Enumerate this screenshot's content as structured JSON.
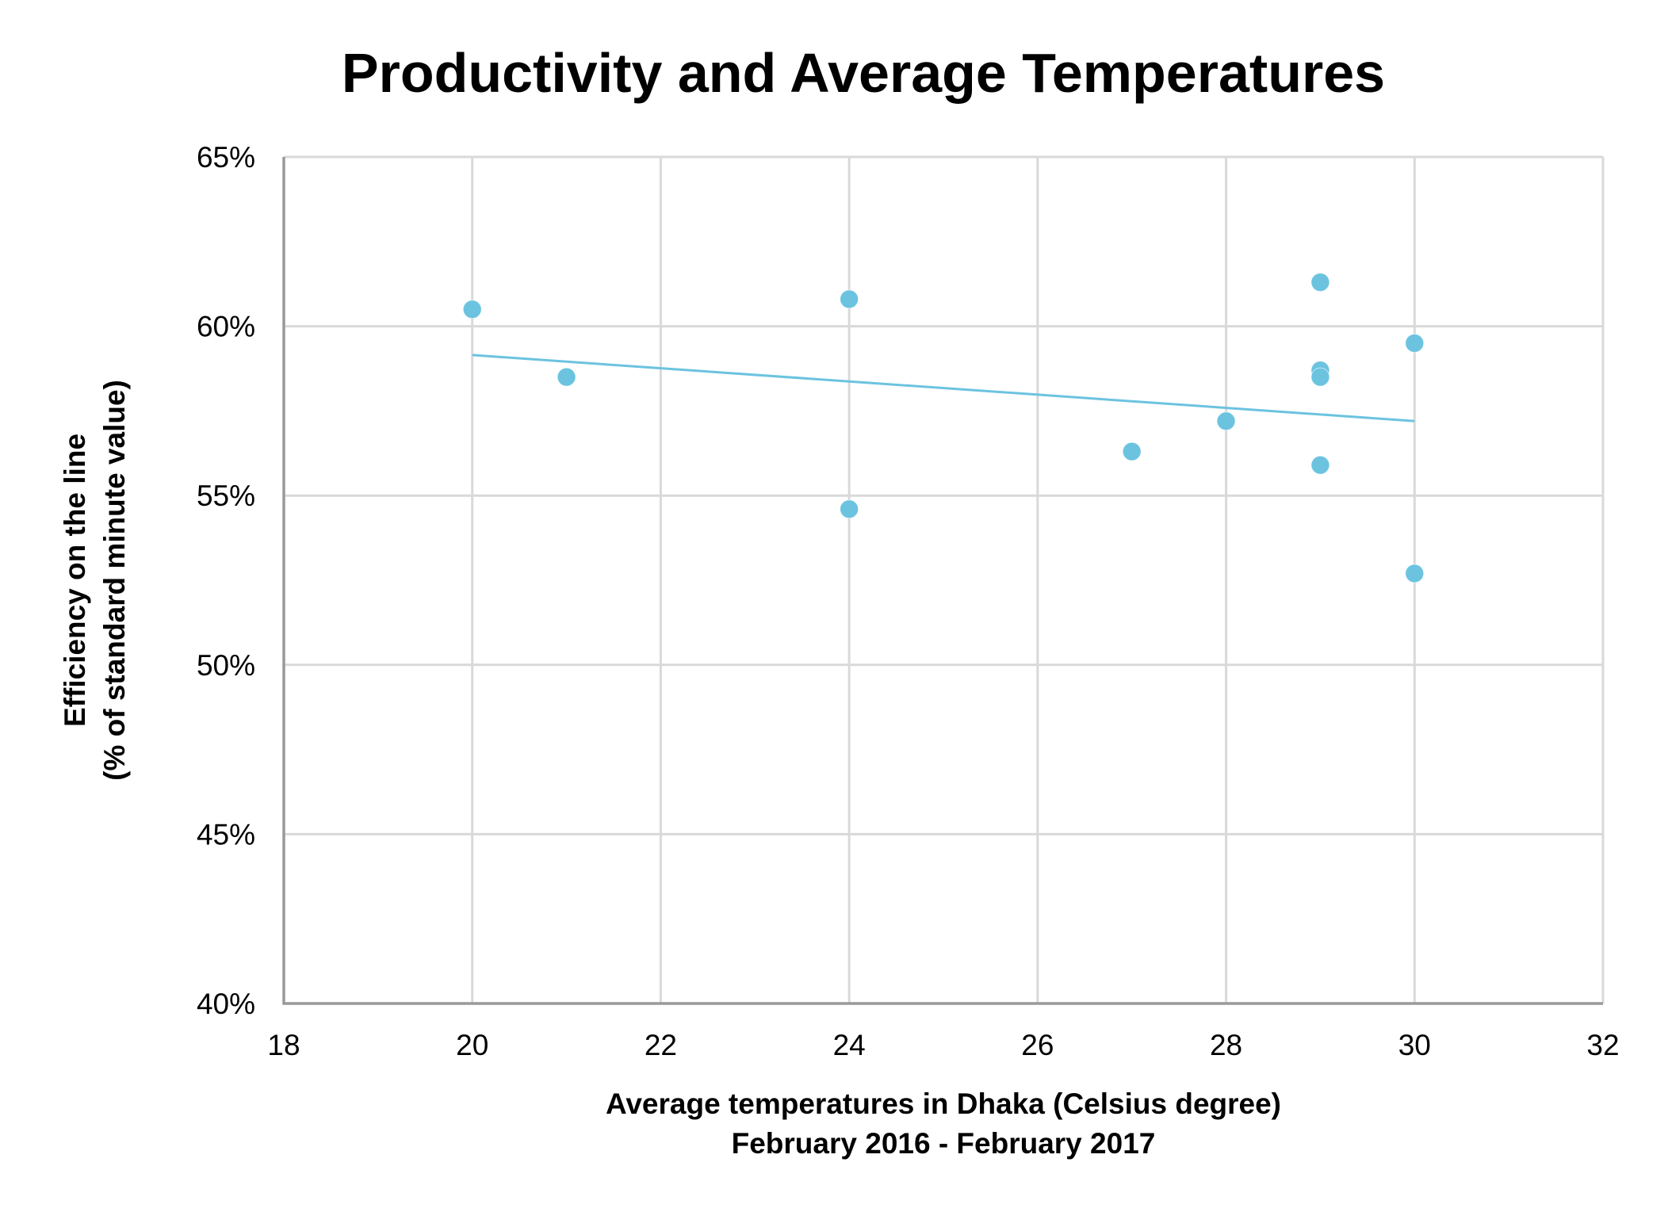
{
  "chart_data": {
    "type": "scatter",
    "title": "Productivity and Average Temperatures",
    "xlabel": [
      "Average temperatures in Dhaka (Celsius degree)",
      "February 2016 - February 2017"
    ],
    "ylabel": [
      "Efficiency on the line",
      "(% of standard minute value)"
    ],
    "xlim": [
      18,
      32
    ],
    "ylim": [
      40,
      65
    ],
    "x_ticks": [
      18,
      20,
      22,
      24,
      26,
      28,
      30,
      32
    ],
    "y_ticks": [
      40,
      45,
      50,
      55,
      60,
      65
    ],
    "x_tick_labels": [
      "18",
      "20",
      "22",
      "24",
      "26",
      "28",
      "30",
      "32"
    ],
    "y_tick_labels": [
      "40%",
      "45%",
      "50%",
      "55%",
      "60%",
      "65%"
    ],
    "grid": true,
    "legend": "none",
    "series": [
      {
        "name": "Efficiency",
        "color": "#6BC3E0",
        "points": [
          {
            "x": 20,
            "y": 60.5
          },
          {
            "x": 21,
            "y": 58.5
          },
          {
            "x": 24,
            "y": 60.8
          },
          {
            "x": 24,
            "y": 54.6
          },
          {
            "x": 27,
            "y": 56.3
          },
          {
            "x": 28,
            "y": 57.2
          },
          {
            "x": 29,
            "y": 61.3
          },
          {
            "x": 29,
            "y": 58.7
          },
          {
            "x": 29,
            "y": 58.5
          },
          {
            "x": 29,
            "y": 55.9
          },
          {
            "x": 30,
            "y": 59.5
          },
          {
            "x": 30,
            "y": 52.7
          }
        ]
      }
    ],
    "trendline": {
      "type": "linear",
      "color": "#6BC3E0",
      "x": [
        20,
        30
      ],
      "y": [
        59.15,
        57.2
      ]
    },
    "colors": {
      "grid": "#D9D9D9",
      "axis": "#999999",
      "text": "#000000"
    }
  }
}
